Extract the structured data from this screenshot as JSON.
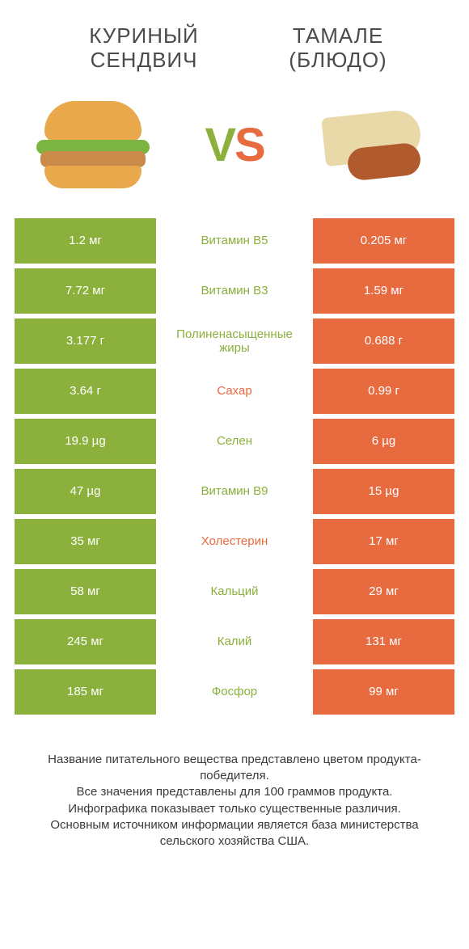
{
  "colors": {
    "left": "#8bb03c",
    "right": "#e86a3f",
    "mid_bg": "#ffffff",
    "text_dark": "#4a4a4a"
  },
  "header": {
    "left_title": "КУРИНЫЙ СЕНДВИЧ",
    "right_title": "ТАМАЛЕ (БЛЮДО)"
  },
  "vs": {
    "v": "V",
    "s": "S"
  },
  "rows": [
    {
      "left": "1.2 мг",
      "label": "Витамин B5",
      "right": "0.205 мг",
      "winner": "left"
    },
    {
      "left": "7.72 мг",
      "label": "Витамин B3",
      "right": "1.59 мг",
      "winner": "left"
    },
    {
      "left": "3.177 г",
      "label": "Полиненасыщенные жиры",
      "right": "0.688 г",
      "winner": "left"
    },
    {
      "left": "3.64 г",
      "label": "Сахар",
      "right": "0.99 г",
      "winner": "right"
    },
    {
      "left": "19.9 µg",
      "label": "Селен",
      "right": "6 µg",
      "winner": "left"
    },
    {
      "left": "47 µg",
      "label": "Витамин B9",
      "right": "15 µg",
      "winner": "left"
    },
    {
      "left": "35 мг",
      "label": "Холестерин",
      "right": "17 мг",
      "winner": "right"
    },
    {
      "left": "58 мг",
      "label": "Кальций",
      "right": "29 мг",
      "winner": "left"
    },
    {
      "left": "245 мг",
      "label": "Калий",
      "right": "131 мг",
      "winner": "left"
    },
    {
      "left": "185 мг",
      "label": "Фосфор",
      "right": "99 мг",
      "winner": "left"
    }
  ],
  "footer": {
    "line1": "Название питательного вещества представлено цветом продукта-победителя.",
    "line2": "Все значения представлены для 100 граммов продукта.",
    "line3": "Инфографика показывает только существенные различия.",
    "line4": "Основным источником информации является база министерства сельского хозяйства США."
  }
}
